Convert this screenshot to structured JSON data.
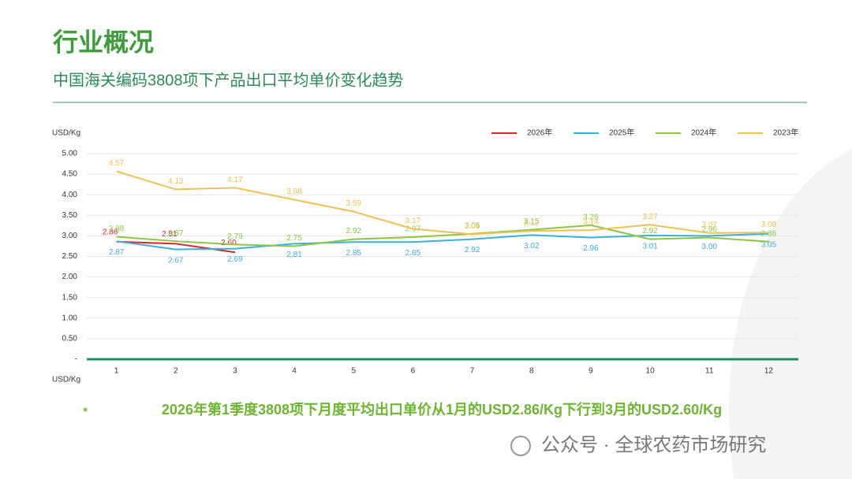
{
  "header": {
    "title": "行业概况",
    "subtitle": "中国海关编码3808项下产品出口平均单价变化趋势"
  },
  "chart_data": {
    "type": "line",
    "y_label": "USD/Kg",
    "x_label": "USD/Kg",
    "categories": [
      "1",
      "2",
      "3",
      "4",
      "5",
      "6",
      "7",
      "8",
      "9",
      "10",
      "11",
      "12"
    ],
    "ylim": [
      0,
      5
    ],
    "yticks": [
      {
        "value": 0,
        "label": "-"
      },
      {
        "value": 0.5,
        "label": "0.50"
      },
      {
        "value": 1,
        "label": "1.00"
      },
      {
        "value": 1.5,
        "label": "1.50"
      },
      {
        "value": 2,
        "label": "2.00"
      },
      {
        "value": 2.5,
        "label": "2.50"
      },
      {
        "value": 3,
        "label": "3.00"
      },
      {
        "value": 3.5,
        "label": "3.50"
      },
      {
        "value": 4,
        "label": "4.00"
      },
      {
        "value": 4.5,
        "label": "4.50"
      },
      {
        "value": 5,
        "label": "5.00"
      }
    ],
    "grid": true,
    "legend": "top-right",
    "series": [
      {
        "name": "2026年",
        "color": "#d9262c",
        "values": [
          2.86,
          2.81,
          2.6,
          null,
          null,
          null,
          null,
          null,
          null,
          null,
          null,
          null
        ],
        "value_labels": [
          "2.86",
          "2.81",
          "2.60",
          null,
          null,
          null,
          null,
          null,
          null,
          null,
          null,
          null
        ]
      },
      {
        "name": "2025年",
        "color": "#3bb0d8",
        "values": [
          2.87,
          2.67,
          2.69,
          2.81,
          2.85,
          2.85,
          2.92,
          3.02,
          2.96,
          3.01,
          3,
          3.05
        ],
        "value_labels": [
          "2.87",
          "2.67",
          "2.69",
          "2.81",
          "2.85",
          "2.85",
          "2.92",
          "3.02",
          "2.96",
          "3.01",
          "3.00",
          "3.05"
        ]
      },
      {
        "name": "2024年",
        "color": "#8cc63e",
        "values": [
          2.98,
          2.87,
          2.79,
          2.75,
          2.92,
          2.97,
          3.05,
          3.15,
          3.26,
          2.92,
          2.96,
          2.86
        ],
        "value_labels": [
          "2.98",
          "2.87",
          "2.79",
          "2.75",
          "2.92",
          "2.97",
          "3.05",
          "3.15",
          "3.26",
          "2.92",
          "2.96",
          "2.86"
        ]
      },
      {
        "name": "2023年",
        "color": "#f0c050",
        "values": [
          4.57,
          4.13,
          4.17,
          3.88,
          3.59,
          3.17,
          3.04,
          3.12,
          3.14,
          3.27,
          3.07,
          3.08
        ],
        "value_labels": [
          "4.57",
          "4.13",
          "4.17",
          "3.88",
          "3.59",
          "3.17",
          "3.04",
          "3.12",
          "3.14",
          "3.27",
          "3.07",
          "3.08"
        ]
      }
    ]
  },
  "bullet": "2026年第1季度3808项下月度平均出口单价从1月的USD2.86/Kg下行到3月的USD2.60/Kg",
  "watermark": "公众号 · 全球农药市场研究"
}
